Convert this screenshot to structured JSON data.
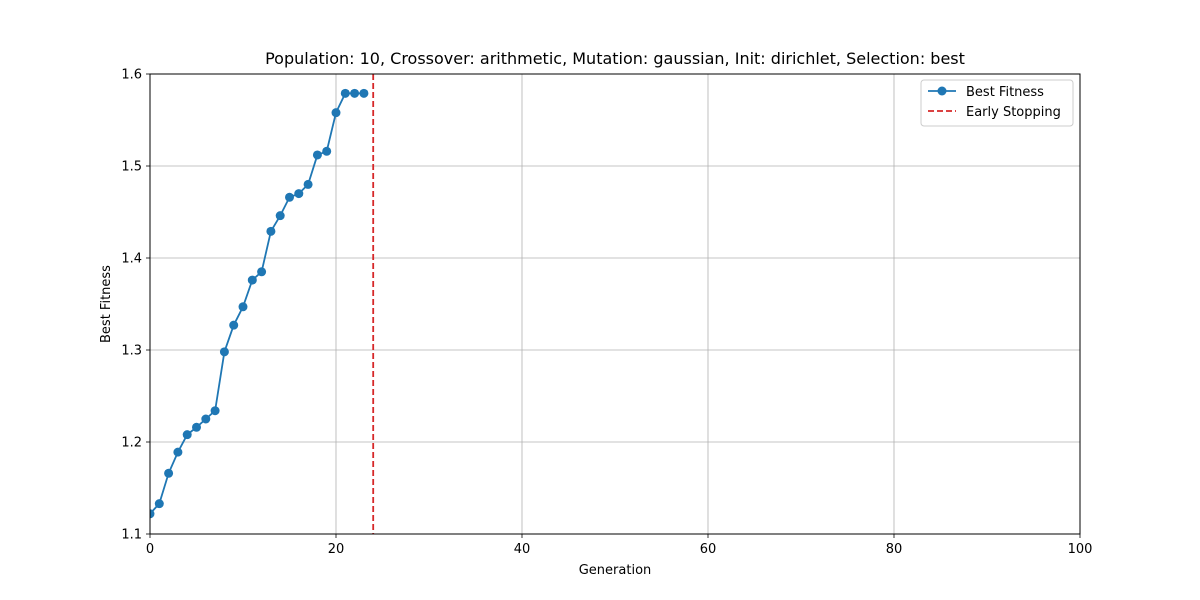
{
  "chart_data": {
    "type": "line",
    "title": "Population: 10, Crossover: arithmetic, Mutation: gaussian, Init: dirichlet, Selection: best",
    "xlabel": "Generation",
    "ylabel": "Best Fitness",
    "xlim": [
      0,
      100
    ],
    "ylim": [
      1.1,
      1.6
    ],
    "xticks": [
      0,
      20,
      40,
      60,
      80,
      100
    ],
    "yticks": [
      1.1,
      1.2,
      1.3,
      1.4,
      1.5,
      1.6
    ],
    "xtick_labels": [
      "0",
      "20",
      "40",
      "60",
      "80",
      "100"
    ],
    "ytick_labels": [
      "1.1",
      "1.2",
      "1.3",
      "1.4",
      "1.5",
      "1.6"
    ],
    "grid": true,
    "legend_position": "top-right",
    "series": [
      {
        "name": "Best Fitness",
        "color": "#1f77b4",
        "marker": "circle",
        "x": [
          0,
          1,
          2,
          3,
          4,
          5,
          6,
          7,
          8,
          9,
          10,
          11,
          12,
          13,
          14,
          15,
          16,
          17,
          18,
          19,
          20,
          21,
          22,
          23
        ],
        "y": [
          1.122,
          1.133,
          1.166,
          1.189,
          1.208,
          1.216,
          1.225,
          1.234,
          1.298,
          1.327,
          1.347,
          1.376,
          1.385,
          1.429,
          1.446,
          1.466,
          1.47,
          1.48,
          1.512,
          1.516,
          1.558,
          1.579,
          1.579,
          1.579
        ]
      }
    ],
    "vlines": [
      {
        "name": "Early Stopping",
        "x": 24,
        "color": "#d62728",
        "style": "dashed"
      }
    ]
  }
}
